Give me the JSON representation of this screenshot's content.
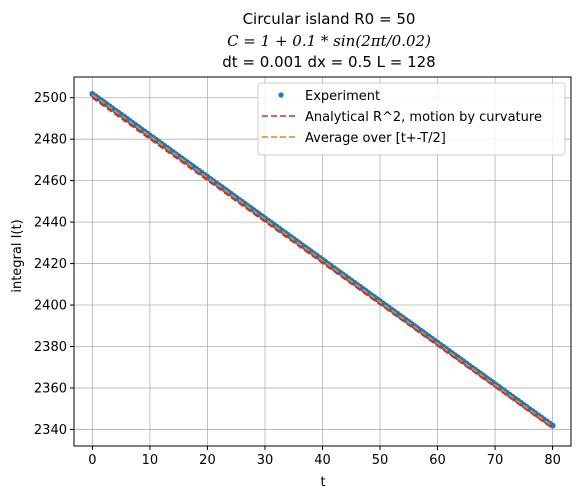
{
  "chart_data": {
    "type": "line",
    "title_lines": [
      "Circular island R0 = 50",
      "C = 1 + 0.1 * sin(2πt/0.02)",
      "dt = 0.001 dx = 0.5 L = 128"
    ],
    "xlabel": "t",
    "ylabel": "integral I(t)",
    "xlim": [
      -3.2,
      83.2
    ],
    "ylim": [
      2332.0,
      2510.0
    ],
    "xticks": [
      0,
      10,
      20,
      30,
      40,
      50,
      60,
      70,
      80
    ],
    "yticks": [
      2340,
      2360,
      2380,
      2400,
      2420,
      2440,
      2460,
      2480,
      2500
    ],
    "grid": true,
    "legend_position": "top-right",
    "series": [
      {
        "name": "Experiment",
        "style": "markers",
        "color": "#1f77b4",
        "x_start": 0,
        "x_end": 80,
        "y_start": 2501.8,
        "y_end": 2341.8
      },
      {
        "name": "Analytical R^2, motion by curvature",
        "style": "dashed",
        "color": "#d62728",
        "x": [
          0,
          80
        ],
        "y": [
          2500.0,
          2340.5
        ]
      },
      {
        "name": "Average over [t+-T/2]",
        "style": "dashed",
        "color": "#ff7f0e",
        "x": [
          0,
          80
        ],
        "y": [
          2501.5,
          2341.5
        ]
      }
    ]
  }
}
